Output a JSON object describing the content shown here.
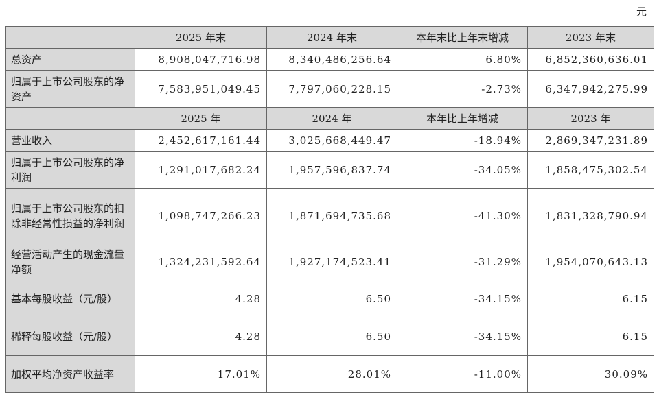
{
  "unit": "元",
  "header1": [
    "2025 年末",
    "2024 年末",
    "本年末比上年末增减",
    "2023 年末"
  ],
  "balance_rows": [
    {
      "label": "总资产",
      "values": [
        "8,908,047,716.98",
        "8,340,486,256.64",
        "6.80%",
        "6,852,360,636.01"
      ]
    },
    {
      "label": "归属于上市公司股东的净资产",
      "values": [
        "7,583,951,049.45",
        "7,797,060,228.15",
        "-2.73%",
        "6,347,942,275.99"
      ]
    }
  ],
  "header2": [
    "2025 年",
    "2024 年",
    "本年比上年增减",
    "2023 年"
  ],
  "income_rows": [
    {
      "label": "营业收入",
      "values": [
        "2,452,617,161.44",
        "3,025,668,449.47",
        "-18.94%",
        "2,869,347,231.89"
      ]
    },
    {
      "label": "归属于上市公司股东的净利润",
      "values": [
        "1,291,017,682.24",
        "1,957,596,837.74",
        "-34.05%",
        "1,858,475,302.54"
      ]
    },
    {
      "label": "归属于上市公司股东的扣除非经常性损益的净利润",
      "values": [
        "1,098,747,266.23",
        "1,871,694,735.68",
        "-41.30%",
        "1,831,328,790.94"
      ]
    },
    {
      "label": "经营活动产生的现金流量净额",
      "values": [
        "1,324,231,592.64",
        "1,927,174,523.41",
        "-31.29%",
        "1,954,070,643.13"
      ]
    },
    {
      "label": "基本每股收益（元/股）",
      "values": [
        "4.28",
        "6.50",
        "-34.15%",
        "6.15"
      ]
    },
    {
      "label": "稀释每股收益（元/股）",
      "values": [
        "4.28",
        "6.50",
        "-34.15%",
        "6.15"
      ]
    },
    {
      "label": "加权平均净资产收益率",
      "values": [
        "17.01%",
        "28.01%",
        "-11.00%",
        "30.09%"
      ]
    }
  ]
}
